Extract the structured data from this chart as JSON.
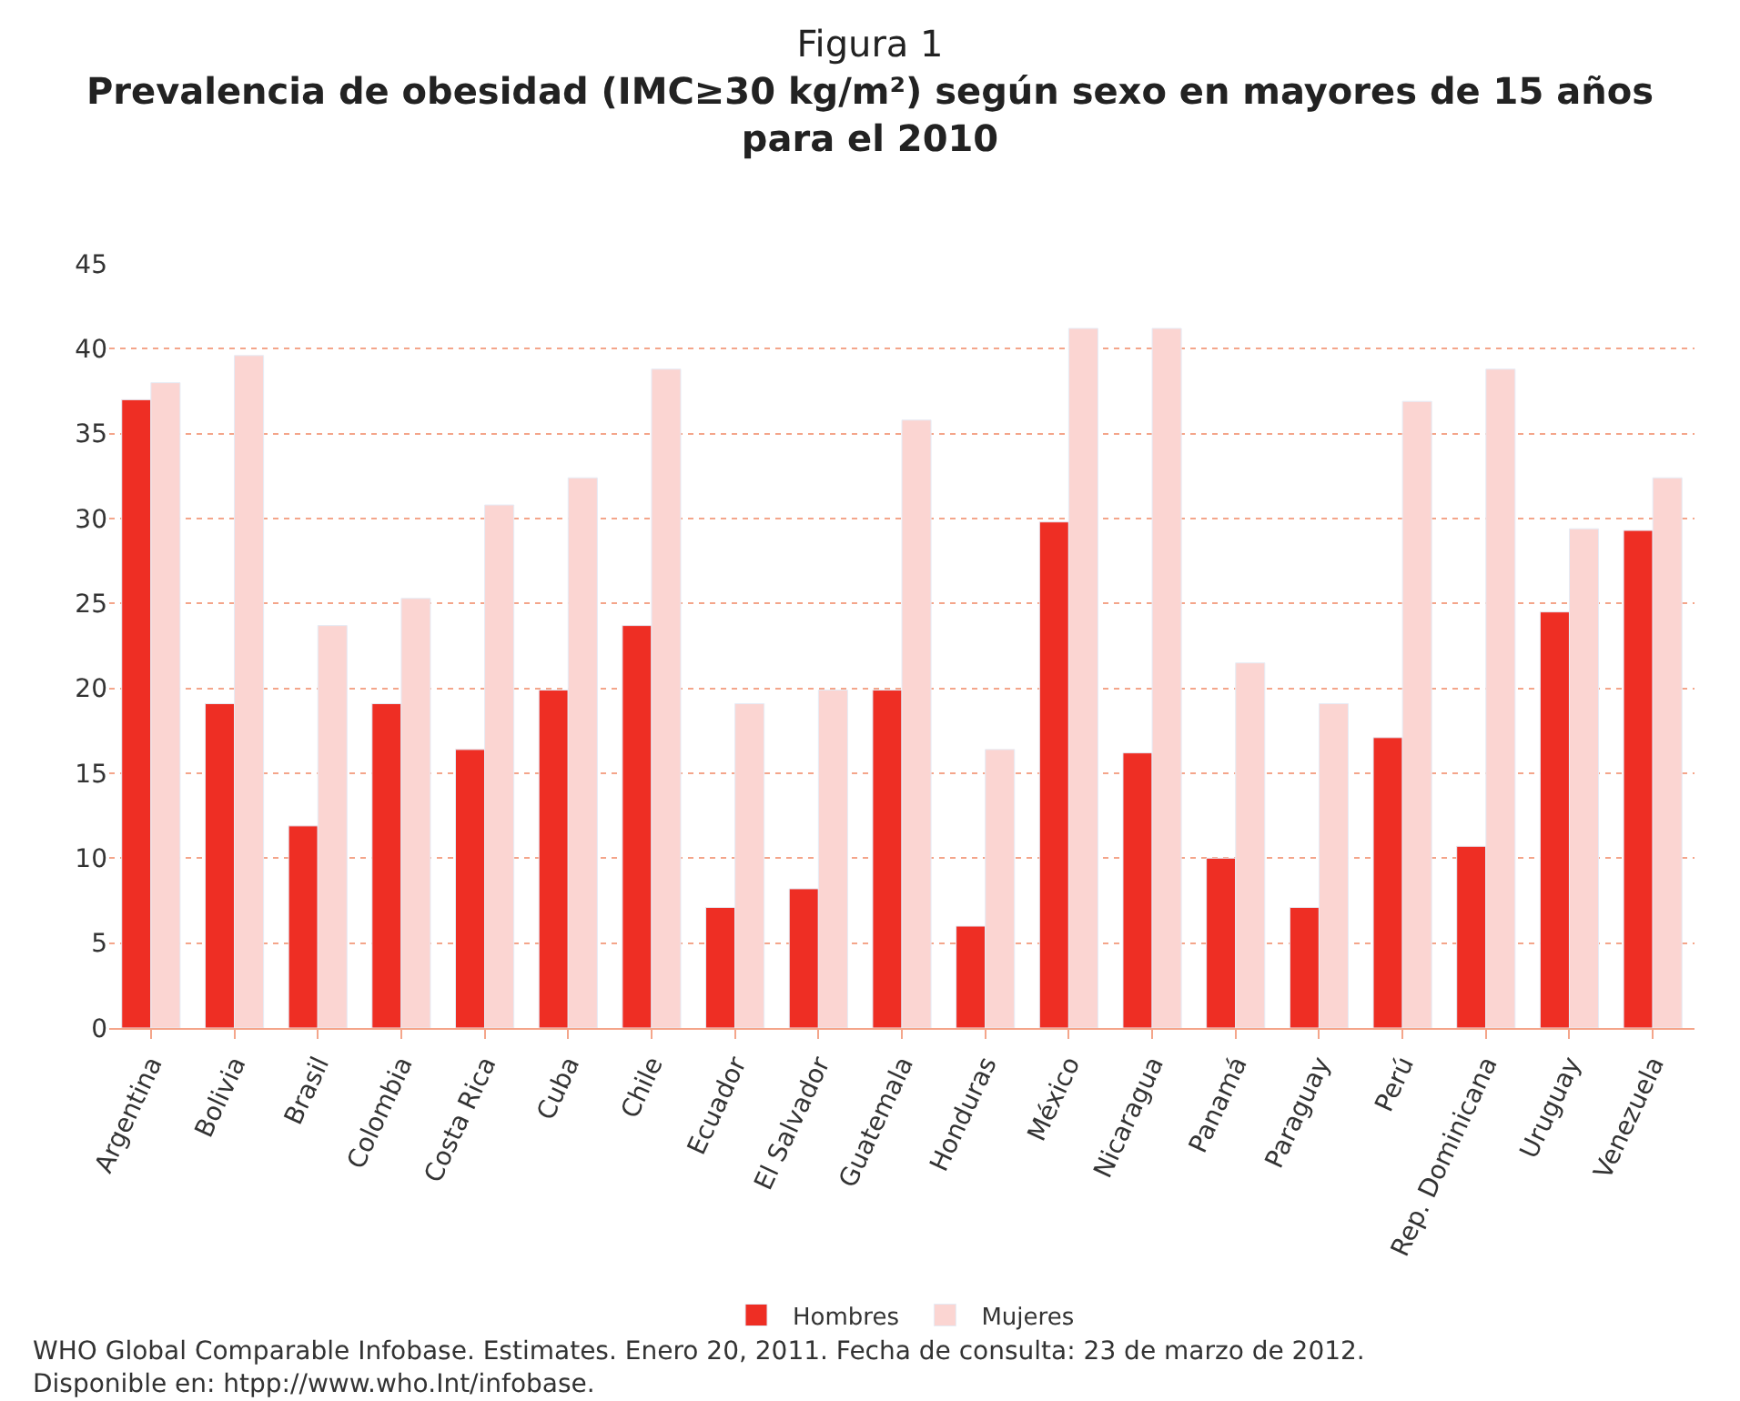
{
  "chart_data": {
    "type": "bar",
    "title": "Figura 1",
    "subtitle": "Prevalencia de obesidad (IMC≥30 kg/m²) según sexo en mayores de 15 años para el 2010",
    "categories": [
      "Argentina",
      "Bolivia",
      "Brasil",
      "Colombia",
      "Costa Rica",
      "Cuba",
      "Chile",
      "Ecuador",
      "El Salvador",
      "Guatemala",
      "Honduras",
      "México",
      "Nicaragua",
      "Panamá",
      "Paraguay",
      "Perú",
      "Rep. Dominicana",
      "Uruguay",
      "Venezuela"
    ],
    "series": [
      {
        "name": "Hombres",
        "color": "#ee2e24",
        "values": [
          37.0,
          19.1,
          11.9,
          19.1,
          16.4,
          19.9,
          23.7,
          7.1,
          8.2,
          19.9,
          6.0,
          29.8,
          16.2,
          10.0,
          7.1,
          17.1,
          10.7,
          24.5,
          29.3
        ]
      },
      {
        "name": "Mujeres",
        "color": "#fbd5d2",
        "values": [
          38.0,
          39.6,
          23.7,
          25.3,
          30.8,
          32.4,
          38.8,
          19.1,
          19.9,
          35.8,
          16.4,
          41.2,
          41.2,
          21.5,
          19.1,
          36.9,
          38.8,
          29.4,
          32.4
        ]
      }
    ],
    "ylim": [
      0,
      45
    ],
    "yticks": [
      0,
      5,
      10,
      15,
      20,
      25,
      30,
      35,
      40,
      45
    ],
    "grid": "y",
    "legend": "bottom",
    "annotations": [
      "WHO Global Comparable Infobase. Estimates. Enero 20, 2011. Fecha de consulta: 23 de marzo de 2012. Disponible en: htpp://www.who.Int/infobase."
    ]
  }
}
